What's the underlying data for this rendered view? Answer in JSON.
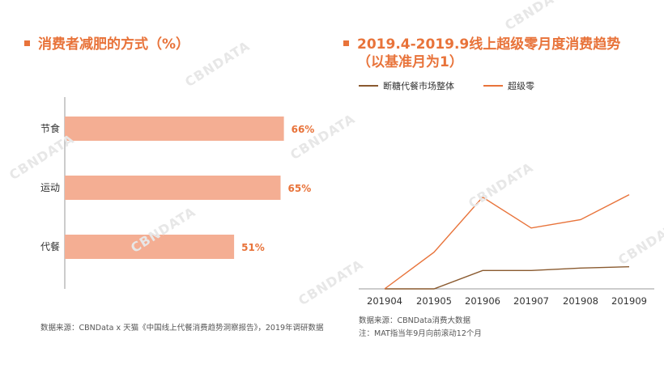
{
  "left_title": "消费者减肥的方式（%）",
  "right_title_line1": "2019.4-2019.9线上超级零月度消费趋势",
  "right_title_line2": "（以基准月为1）",
  "left_source": "数据来源：CBNData x 天猫《中国线上代餐消费趋势洞察报告》，2019年调研数据",
  "right_source_line1": "数据来源：CBNData消费大数据",
  "right_source_line2": "注：MAT指当年9月向前滚动12个月",
  "watermark": "CBNDATA",
  "colors": {
    "accent": "#e8733a",
    "bar": "#f4ae93",
    "series_dark": "#8a5a2f",
    "series_light": "#e8733a"
  },
  "chart_data": [
    {
      "type": "bar",
      "orientation": "horizontal",
      "categories": [
        "节食",
        "运动",
        "代餐"
      ],
      "values": [
        66,
        65,
        51
      ],
      "value_labels": [
        "66%",
        "65%",
        "51%"
      ],
      "xlim": [
        0,
        100
      ]
    },
    {
      "type": "line",
      "x": [
        "201904",
        "201905",
        "201906",
        "201907",
        "201908",
        "201909"
      ],
      "series": [
        {
          "name": "断糖代餐市场整体",
          "values": [
            1.0,
            1.0,
            3.2,
            3.2,
            3.5,
            3.65
          ]
        },
        {
          "name": "超级零",
          "values": [
            1.0,
            5.4,
            12.0,
            8.3,
            9.3,
            12.3
          ]
        }
      ],
      "ylim": [
        1,
        14
      ],
      "legend": "top"
    }
  ]
}
